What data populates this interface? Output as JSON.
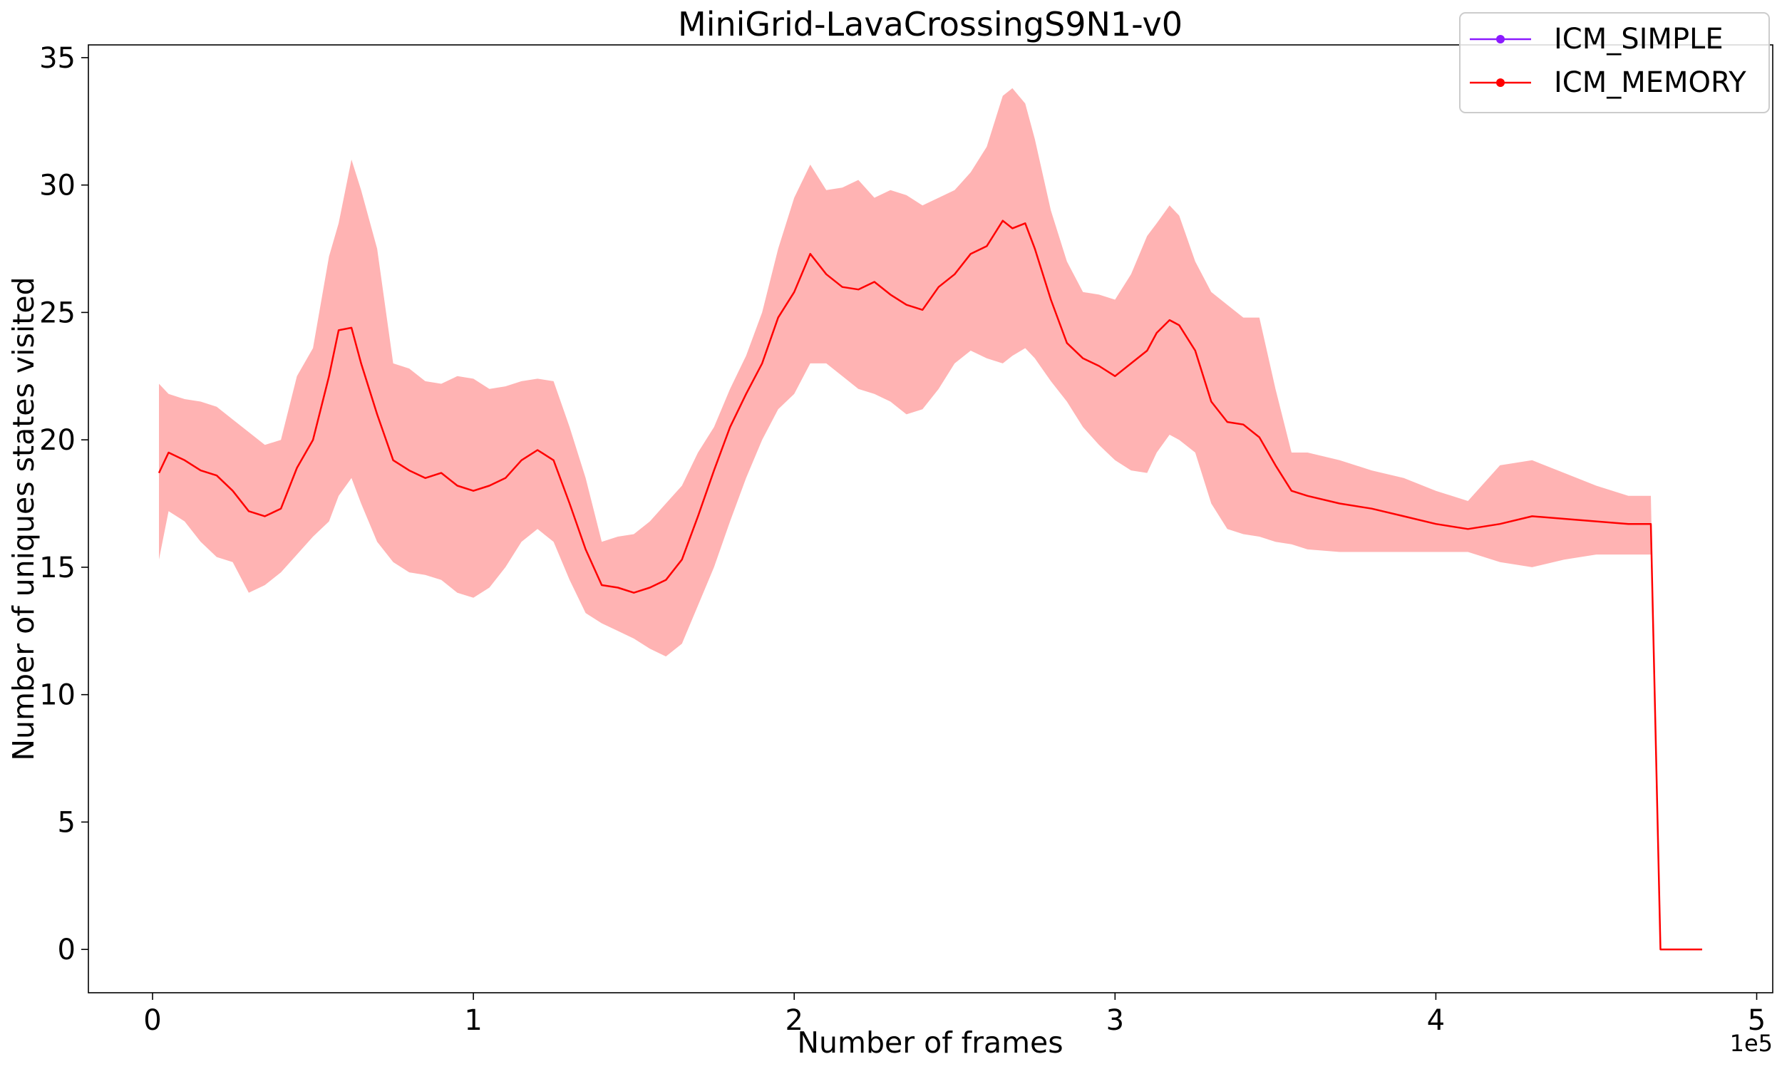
{
  "chart_data": {
    "type": "line",
    "title": "MiniGrid-LavaCrossingS9N1-v0",
    "xlabel": "Number of frames",
    "ylabel": "Number of uniques states visited",
    "x_offset_label": "1e5",
    "xlim": [
      -20000,
      505000
    ],
    "ylim": [
      -1.7,
      35.5
    ],
    "xticks": [
      0,
      100000,
      200000,
      300000,
      400000,
      500000
    ],
    "xtick_labels": [
      "0",
      "1",
      "2",
      "3",
      "4",
      "5"
    ],
    "yticks": [
      0,
      5,
      10,
      15,
      20,
      25,
      30,
      35
    ],
    "ytick_labels": [
      "0",
      "5",
      "10",
      "15",
      "20",
      "25",
      "30",
      "35"
    ],
    "legend_position": "top-right",
    "colors": {
      "ICM_SIMPLE": "#8b1aff",
      "ICM_MEMORY": "#ff0000",
      "band": "#ff9a9a"
    },
    "series": [
      {
        "name": "ICM_SIMPLE",
        "color": "#8b1aff",
        "x": [],
        "y": []
      },
      {
        "name": "ICM_MEMORY",
        "color": "#ff0000",
        "x": [
          2000,
          5000,
          10000,
          15000,
          20000,
          25000,
          30000,
          35000,
          40000,
          45000,
          50000,
          55000,
          58000,
          62000,
          65000,
          70000,
          75000,
          80000,
          85000,
          90000,
          95000,
          100000,
          105000,
          110000,
          115000,
          120000,
          125000,
          130000,
          135000,
          140000,
          145000,
          150000,
          155000,
          160000,
          165000,
          170000,
          175000,
          180000,
          185000,
          190000,
          195000,
          200000,
          205000,
          210000,
          215000,
          220000,
          225000,
          230000,
          235000,
          240000,
          245000,
          250000,
          255000,
          260000,
          265000,
          268000,
          272000,
          275000,
          280000,
          285000,
          290000,
          295000,
          300000,
          305000,
          310000,
          313000,
          317000,
          320000,
          325000,
          330000,
          335000,
          340000,
          345000,
          350000,
          355000,
          360000,
          370000,
          380000,
          390000,
          400000,
          410000,
          420000,
          430000,
          440000,
          450000,
          460000,
          466000,
          467000,
          470000,
          483000
        ],
        "y": [
          18.7,
          19.5,
          19.2,
          18.8,
          18.6,
          18.0,
          17.2,
          17.0,
          17.3,
          18.9,
          20.0,
          22.5,
          24.3,
          24.4,
          23.0,
          21.0,
          19.2,
          18.8,
          18.5,
          18.7,
          18.2,
          18.0,
          18.2,
          18.5,
          19.2,
          19.6,
          19.2,
          17.5,
          15.7,
          14.3,
          14.2,
          14.0,
          14.2,
          14.5,
          15.3,
          17.0,
          18.8,
          20.5,
          21.8,
          23.0,
          24.8,
          25.8,
          27.3,
          26.5,
          26.0,
          25.9,
          26.2,
          25.7,
          25.3,
          25.1,
          26.0,
          26.5,
          27.3,
          27.6,
          28.6,
          28.3,
          28.5,
          27.5,
          25.5,
          23.8,
          23.2,
          22.9,
          22.5,
          23.0,
          23.5,
          24.2,
          24.7,
          24.5,
          23.5,
          21.5,
          20.7,
          20.6,
          20.1,
          19.0,
          18.0,
          17.8,
          17.5,
          17.3,
          17.0,
          16.7,
          16.5,
          16.7,
          17.0,
          16.9,
          16.8,
          16.7,
          16.7,
          16.7,
          0.0,
          0.0
        ],
        "band_lower": [
          15.3,
          17.2,
          16.8,
          16.0,
          15.4,
          15.2,
          14.0,
          14.3,
          14.8,
          15.5,
          16.2,
          16.8,
          17.8,
          18.5,
          17.5,
          16.0,
          15.2,
          14.8,
          14.7,
          14.5,
          14.0,
          13.8,
          14.2,
          15.0,
          16.0,
          16.5,
          16.0,
          14.5,
          13.2,
          12.8,
          12.5,
          12.2,
          11.8,
          11.5,
          12.0,
          13.5,
          15.0,
          16.8,
          18.5,
          20.0,
          21.2,
          21.8,
          23.0,
          23.0,
          22.5,
          22.0,
          21.8,
          21.5,
          21.0,
          21.2,
          22.0,
          23.0,
          23.5,
          23.2,
          23.0,
          23.3,
          23.6,
          23.2,
          22.3,
          21.5,
          20.5,
          19.8,
          19.2,
          18.8,
          18.7,
          19.5,
          20.2,
          20.0,
          19.5,
          17.5,
          16.5,
          16.3,
          16.2,
          16.0,
          15.9,
          15.7,
          15.6,
          15.6,
          15.6,
          15.6,
          15.6,
          15.2,
          15.0,
          15.3,
          15.5,
          15.5,
          15.5,
          15.5,
          0.0,
          0.0
        ],
        "band_upper": [
          22.2,
          21.8,
          21.6,
          21.5,
          21.3,
          20.8,
          20.3,
          19.8,
          20.0,
          22.5,
          23.6,
          27.2,
          28.5,
          31.0,
          29.8,
          27.5,
          23.0,
          22.8,
          22.3,
          22.2,
          22.5,
          22.4,
          22.0,
          22.1,
          22.3,
          22.4,
          22.3,
          20.5,
          18.5,
          16.0,
          16.2,
          16.3,
          16.8,
          17.5,
          18.2,
          19.5,
          20.5,
          22.0,
          23.3,
          25.0,
          27.5,
          29.5,
          30.8,
          29.8,
          29.9,
          30.2,
          29.5,
          29.8,
          29.6,
          29.2,
          29.5,
          29.8,
          30.5,
          31.5,
          33.5,
          33.8,
          33.2,
          31.8,
          29.0,
          27.0,
          25.8,
          25.7,
          25.5,
          26.5,
          28.0,
          28.5,
          29.2,
          28.8,
          27.0,
          25.8,
          25.3,
          24.8,
          24.8,
          22.0,
          19.5,
          19.5,
          19.2,
          18.8,
          18.5,
          18.0,
          17.6,
          19.0,
          19.2,
          18.7,
          18.2,
          17.8,
          17.8,
          17.8,
          0.0,
          0.0
        ]
      }
    ]
  }
}
